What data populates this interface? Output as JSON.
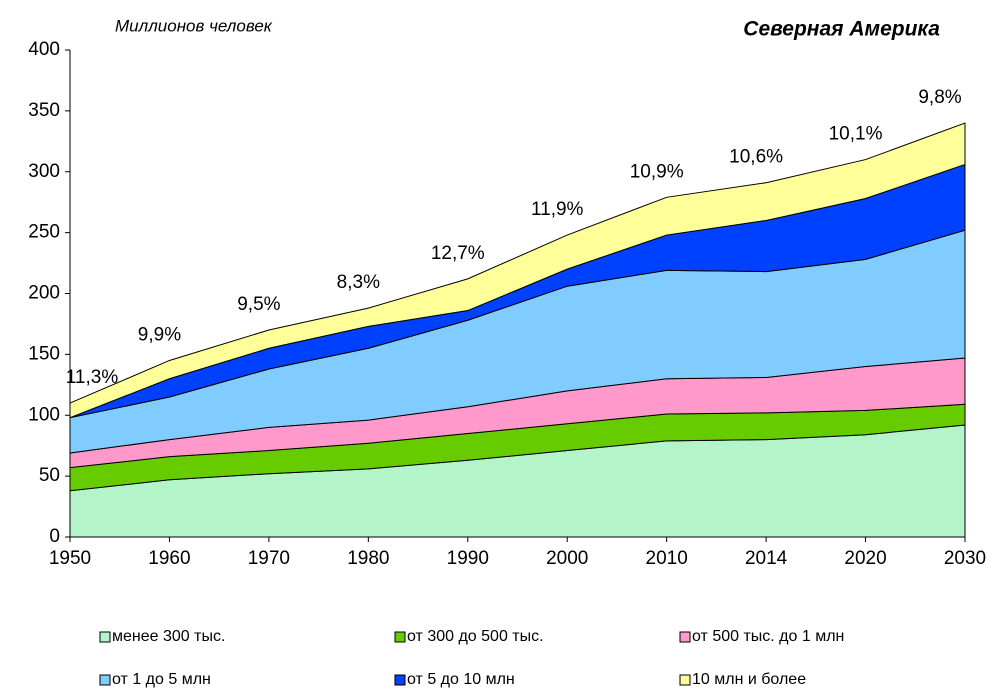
{
  "chart_data": {
    "type": "stacked_area",
    "title": "Северная Америка",
    "y_label": "Миллионов человек",
    "categories": [
      "1950",
      "1960",
      "1970",
      "1980",
      "1990",
      "2000",
      "2010",
      "2014",
      "2020",
      "2030"
    ],
    "series": [
      {
        "name": "менее 300 тыс.",
        "color": "#b3f5c8",
        "values": [
          38,
          47,
          52,
          56,
          63,
          71,
          79,
          80,
          84,
          92
        ]
      },
      {
        "name": "от 300 до 500 тыс.",
        "color": "#66cc00",
        "values": [
          19,
          19,
          19,
          21,
          22,
          22,
          22,
          22,
          20,
          17
        ]
      },
      {
        "name": "от 500 тыс. до 1 млн",
        "color": "#ff99cc",
        "values": [
          12,
          14,
          19,
          19,
          22,
          27,
          29,
          29,
          36,
          38
        ]
      },
      {
        "name": "от 1 до 5 млн",
        "color": "#80ccff",
        "values": [
          29,
          35,
          48,
          59,
          71,
          86,
          89,
          87,
          88,
          105
        ]
      },
      {
        "name": "от 5 до 10 млн",
        "color": "#0040ff",
        "values": [
          0,
          15,
          17,
          18,
          8,
          14,
          29,
          42,
          50,
          54
        ]
      },
      {
        "name": "10 млн и более",
        "color": "#ffff99",
        "values": [
          12,
          15,
          15,
          15,
          26,
          28,
          31,
          31,
          32,
          34
        ]
      }
    ],
    "annotations": [
      "11,3%",
      "9,9%",
      "9,5%",
      "8,3%",
      "12,7%",
      "11,9%",
      "10,9%",
      "10,6%",
      "10,1%",
      "9,8%"
    ],
    "ylim": [
      0,
      400
    ],
    "yticks": [
      0,
      50,
      100,
      150,
      200,
      250,
      300,
      350,
      400
    ],
    "grid": false
  }
}
